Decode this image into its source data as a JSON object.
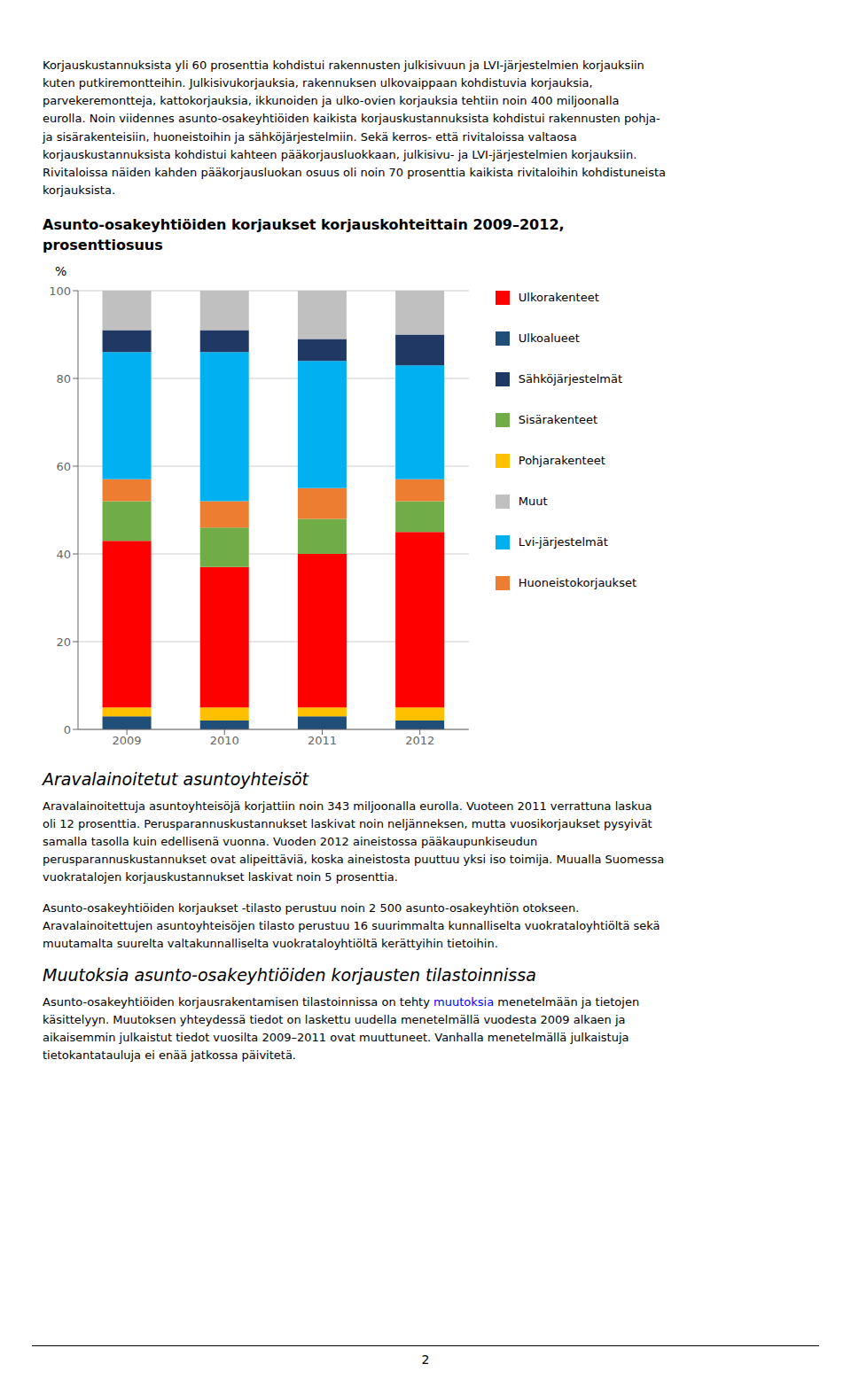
{
  "chart_data": {
    "type": "bar",
    "stacked": true,
    "title": "Asunto-osakeyhtiöiden korjaukset korjauskohteittain 2009–2012,\nprosenttiosuus",
    "ylabel": "%",
    "categories": [
      "2009",
      "2010",
      "2011",
      "2012"
    ],
    "series": [
      {
        "name": "Ulkoalueet",
        "color": "#1F4E79",
        "values": [
          3,
          2,
          3,
          2
        ]
      },
      {
        "name": "Pohjarakenteet",
        "color": "#FFC000",
        "values": [
          2,
          3,
          2,
          3
        ]
      },
      {
        "name": "Ulkorakenteet",
        "color": "#FF0000",
        "values": [
          38,
          32,
          35,
          40
        ]
      },
      {
        "name": "Sisärakenteet",
        "color": "#70AD47",
        "values": [
          9,
          9,
          8,
          7
        ]
      },
      {
        "name": "Huoneistokorjaukset",
        "color": "#ED7D31",
        "values": [
          5,
          6,
          7,
          5
        ]
      },
      {
        "name": "Lvi-järjestelmät",
        "color": "#00B0F0",
        "values": [
          29,
          34,
          29,
          26
        ]
      },
      {
        "name": "Sähköjärjestelmät",
        "color": "#203864",
        "values": [
          5,
          5,
          5,
          7
        ]
      },
      {
        "name": "Muut",
        "color": "#C0C0C0",
        "values": [
          9,
          9,
          11,
          10
        ]
      }
    ],
    "ylim": [
      0,
      100
    ],
    "yticks": [
      0,
      20,
      40,
      60,
      80,
      100
    ],
    "grid": true,
    "legend": "right"
  },
  "page": {
    "paragraph1": "Korjauskustannuksista yli 60 prosenttia kohdistui rakennusten julkisivuun ja LVI-järjestelmien korjauksiin\nkuten putkiremontteihin. Julkisivukorjauksia, rakennuksen ulkovaippaan kohdistuvia korjauksia,\nparvekeremontteja, kattokorjauksia, ikkunoiden ja ulko-ovien korjauksia tehtiin noin 400 miljoonalla\neurolla. Noin viidennes asunto-osakeyhtiöiden kaikista korjauskustannuksista kohdistui rakennusten pohja-\nja sisärakenteisiin, huoneistoihin ja sähköjärjestelmiin. Sekä kerros- että rivitaloissa valtaosa\nkorjauskustannuksista kohdistui kahteen pääkorjausluokkaan, julkisivu- ja LVI-järjestelmien korjauksiin.\nRivitaloissa näiden kahden pääkorjausluokan osuus oli noin 70 prosenttia kaikista rivitaloihin kohdistuneista\nkorjauksista.",
    "section_title1": "Aravalainoitetut asuntoyhteisöt",
    "paragraph2": "Aravalainoitettuja asuntoyhteisöjä korjattiin noin 343 miljoonalla eurolla. Vuoteen 2011 verrattuna laskua\noli 12 prosenttia. Perusparannuskustannukset laskivat noin neljänneksen, mutta vuosikorjaukset pysyivät\nsamalla tasolla kuin edellisenä vuonna. Vuoden 2012 aineistossa pääkaupunkiseudun\nperusparannuskustannukset ovat alipeittäviä, koska aineistosta puuttuu yksi iso toimija. Muualla Suomessa\nvuokratalojen korjauskustannukset laskivat noin 5 prosenttia.",
    "paragraph3": "Asunto-osakeyhtiöiden korjaukset -tilasto perustuu noin 2 500 asunto-osakeyhtiön otokseen.\nAravalainoitettujen asuntoyhteisöjen tilasto perustuu 16 suurimmalta kunnalliselta vuokrataloyhtiöltä sekä\nmuutamalta suurelta valtakunnalliselta vuokrataloyhtiöltä kerättyihin tietoihin.",
    "section_title2": "Muutoksia asunto-osakeyhtiöiden korjausten tilastoinnissa",
    "paragraph4": {
      "before_link": "Asunto-osakeyhtiöiden korjausrakentamisen tilastoinnissa on tehty ",
      "link": "muutoksia",
      "color": "blue",
      "after_link": " menetelmään ja tietojen\nkäsittelyyn. Muutoksen yhteydessä tiedot on laskettu uudella menetelmällä vuodesta 2009 alkaen ja\naikaisemmin julkaistut tiedot vuosilta 2009–2011 ovat muuttuneet. Vanhalla menetelmällä julkaistuja\ntietokantatauluja ei enää jatkossa päivitetä."
    },
    "footer": "2"
  }
}
